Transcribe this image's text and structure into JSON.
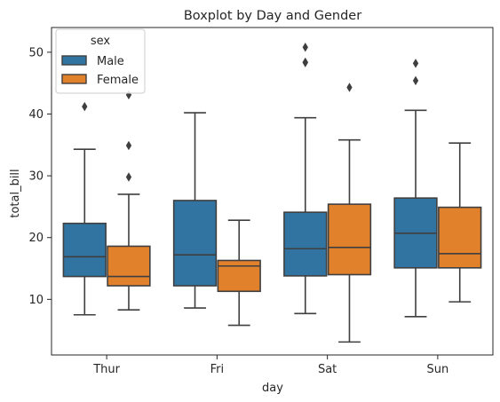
{
  "chart_data": {
    "type": "boxplot",
    "title": "Boxplot by Day and Gender",
    "xlabel": "day",
    "ylabel": "total_bill",
    "categories": [
      "Thur",
      "Fri",
      "Sat",
      "Sun"
    ],
    "ylim": [
      1,
      54
    ],
    "yticks": [
      10,
      20,
      30,
      40,
      50
    ],
    "grid": false,
    "legend": {
      "title": "sex",
      "placement": "top-left"
    },
    "series": [
      {
        "name": "Male",
        "color": "#3274a1",
        "boxes": [
          {
            "whisker_low": 7.5,
            "q1": 13.7,
            "median": 16.9,
            "q3": 22.3,
            "whisker_high": 34.3,
            "outliers": [
              41.2
            ]
          },
          {
            "whisker_low": 8.6,
            "q1": 12.2,
            "median": 17.2,
            "q3": 26.0,
            "whisker_high": 40.2,
            "outliers": []
          },
          {
            "whisker_low": 7.7,
            "q1": 13.8,
            "median": 18.2,
            "q3": 24.1,
            "whisker_high": 39.4,
            "outliers": [
              48.3,
              48.4,
              50.8
            ]
          },
          {
            "whisker_low": 7.2,
            "q1": 15.1,
            "median": 20.7,
            "q3": 26.4,
            "whisker_high": 40.6,
            "outliers": [
              45.4,
              48.2
            ]
          }
        ]
      },
      {
        "name": "Female",
        "color": "#e1812c",
        "boxes": [
          {
            "whisker_low": 8.3,
            "q1": 12.2,
            "median": 13.7,
            "q3": 18.6,
            "whisker_high": 27.0,
            "outliers": [
              29.8,
              34.9,
              43.1
            ]
          },
          {
            "whisker_low": 5.8,
            "q1": 11.3,
            "median": 15.4,
            "q3": 16.3,
            "whisker_high": 22.8,
            "outliers": []
          },
          {
            "whisker_low": 3.1,
            "q1": 14.0,
            "median": 18.4,
            "q3": 25.4,
            "whisker_high": 35.8,
            "outliers": [
              44.3
            ]
          },
          {
            "whisker_low": 9.6,
            "q1": 15.1,
            "median": 17.4,
            "q3": 24.9,
            "whisker_high": 35.3,
            "outliers": []
          }
        ]
      }
    ]
  }
}
